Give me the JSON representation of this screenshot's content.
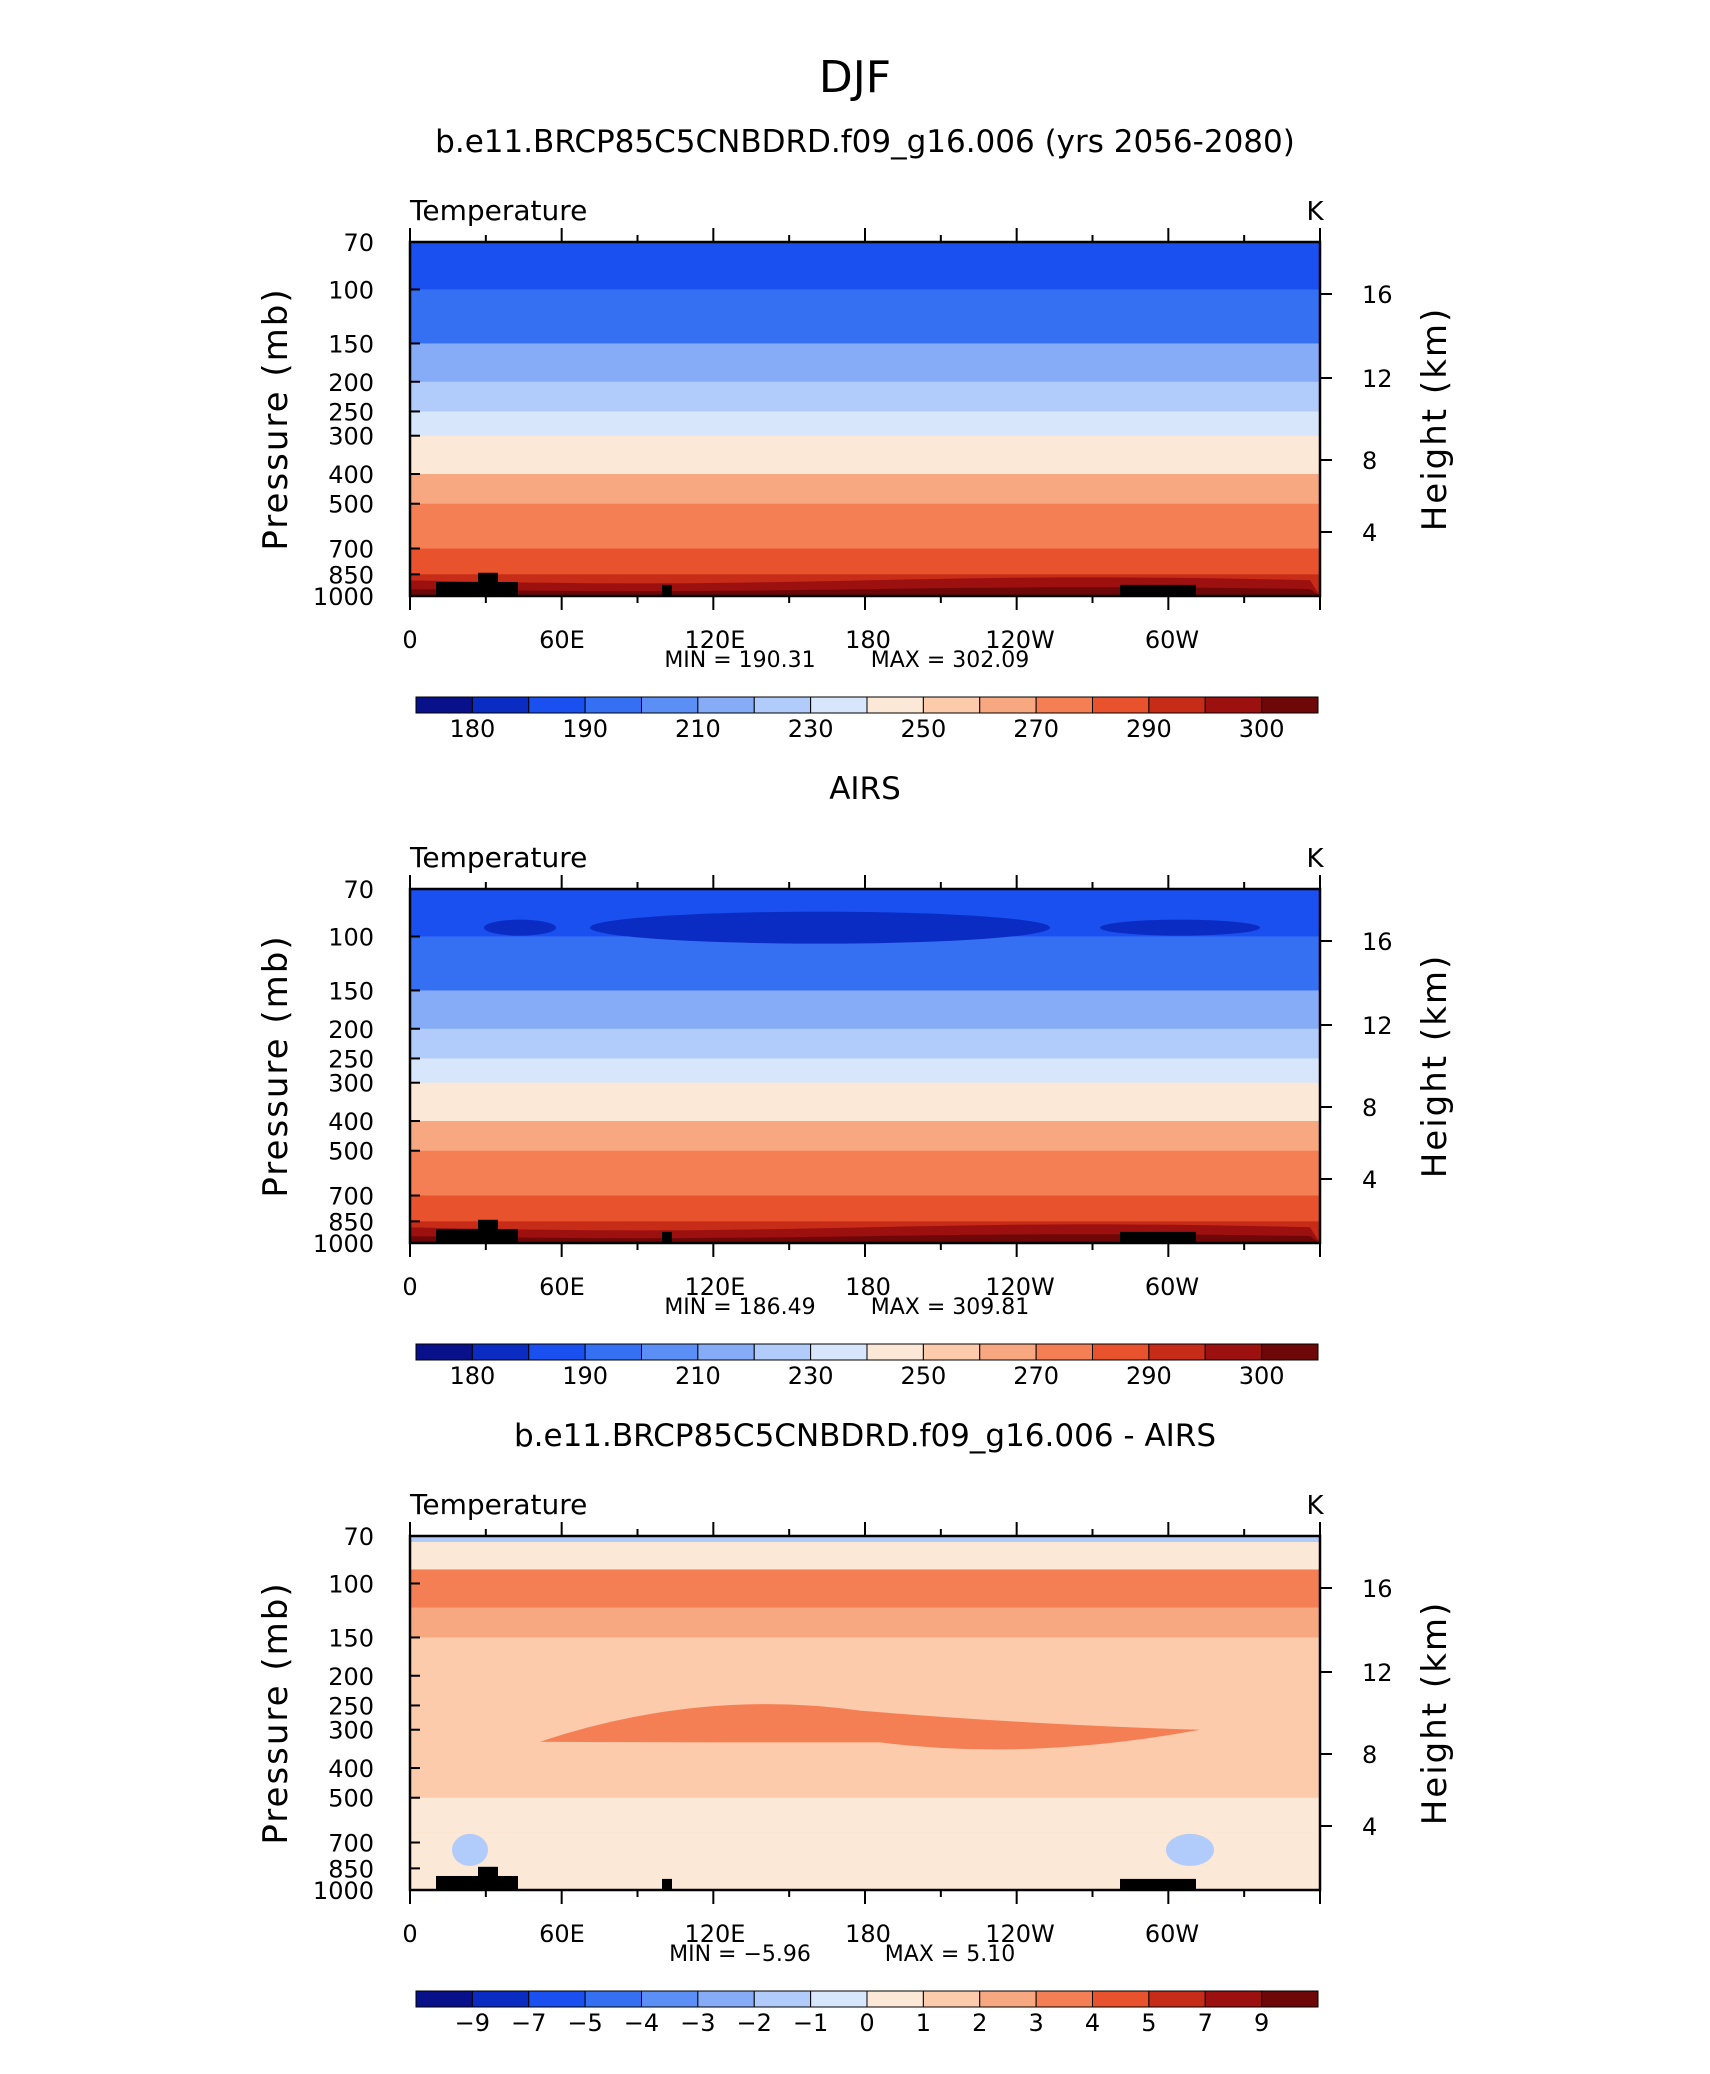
{
  "season": "DJF",
  "chart_data": [
    {
      "type": "heatmap",
      "panel_title": "b.e11.BRCP85C5CNBDRD.f09_g16.006 (yrs 2056-2080)",
      "variable": "Temperature",
      "units": "K",
      "ylabel": "Pressure (mb)",
      "ylabel_right": "Height (km)",
      "pressure_ticks": [
        "70",
        "100",
        "150",
        "200",
        "250",
        "300",
        "400",
        "500",
        "700",
        "850",
        "1000"
      ],
      "height_ticks": [
        "16",
        "12",
        "8",
        "4"
      ],
      "x_tick_labels": [
        "0",
        "60E",
        "120E",
        "180",
        "120W",
        "60W"
      ],
      "min_label": "MIN = 190.31",
      "max_label": "MAX = 302.09",
      "colorbar_labels": [
        "180",
        "190",
        "210",
        "230",
        "250",
        "270",
        "290",
        "300"
      ],
      "colors": [
        "#08108a",
        "#0a2cc2",
        "#1a4ff0",
        "#3670f2",
        "#5b8ff5",
        "#86acf7",
        "#b1cbfa",
        "#d8e6fb",
        "#fce8d6",
        "#fbcbab",
        "#f8a881",
        "#f47f55",
        "#e8522c",
        "#c62c18",
        "#9c1010",
        "#6e0808"
      ],
      "layers_hPa": [
        70,
        100,
        150,
        200,
        250,
        300,
        400,
        500,
        700,
        850,
        1000
      ],
      "color_index_by_layer": [
        2,
        3,
        5,
        6,
        7,
        8,
        10,
        11,
        12,
        13
      ]
    },
    {
      "type": "heatmap",
      "panel_title": "AIRS",
      "variable": "Temperature",
      "units": "K",
      "ylabel": "Pressure (mb)",
      "ylabel_right": "Height (km)",
      "pressure_ticks": [
        "70",
        "100",
        "150",
        "200",
        "250",
        "300",
        "400",
        "500",
        "700",
        "850",
        "1000"
      ],
      "height_ticks": [
        "16",
        "12",
        "8",
        "4"
      ],
      "x_tick_labels": [
        "0",
        "60E",
        "120E",
        "180",
        "120W",
        "60W"
      ],
      "min_label": "MIN = 186.49",
      "max_label": "MAX = 309.81",
      "colorbar_labels": [
        "180",
        "190",
        "210",
        "230",
        "250",
        "270",
        "290",
        "300"
      ],
      "colors": [
        "#08108a",
        "#0a2cc2",
        "#1a4ff0",
        "#3670f2",
        "#5b8ff5",
        "#86acf7",
        "#b1cbfa",
        "#d8e6fb",
        "#fce8d6",
        "#fbcbab",
        "#f8a881",
        "#f47f55",
        "#e8522c",
        "#c62c18",
        "#9c1010",
        "#6e0808"
      ],
      "layers_hPa": [
        70,
        100,
        150,
        200,
        250,
        300,
        400,
        500,
        700,
        850,
        1000
      ],
      "color_index_by_layer": [
        2,
        3,
        5,
        6,
        7,
        8,
        10,
        11,
        12,
        13
      ]
    },
    {
      "type": "heatmap",
      "panel_title": "b.e11.BRCP85C5CNBDRD.f09_g16.006 - AIRS",
      "variable": "Temperature",
      "units": "K",
      "ylabel": "Pressure (mb)",
      "ylabel_right": "Height (km)",
      "pressure_ticks": [
        "70",
        "100",
        "150",
        "200",
        "250",
        "300",
        "400",
        "500",
        "700",
        "850",
        "1000"
      ],
      "height_ticks": [
        "16",
        "12",
        "8",
        "4"
      ],
      "x_tick_labels": [
        "0",
        "60E",
        "120E",
        "180",
        "120W",
        "60W"
      ],
      "min_label": "MIN = −5.96",
      "max_label": "MAX = 5.10",
      "colorbar_labels": [
        "−9",
        "−7",
        "−5",
        "−4",
        "−3",
        "−2",
        "−1",
        "0",
        "1",
        "2",
        "3",
        "4",
        "5",
        "7",
        "9"
      ],
      "colors": [
        "#08108a",
        "#0a2cc2",
        "#1a4ff0",
        "#3670f2",
        "#5b8ff5",
        "#86acf7",
        "#b1cbfa",
        "#d8e6fb",
        "#fce8d6",
        "#fbcbab",
        "#f8a881",
        "#f47f55",
        "#e8522c",
        "#c62c18",
        "#9c1010",
        "#6e0808"
      ]
    }
  ]
}
